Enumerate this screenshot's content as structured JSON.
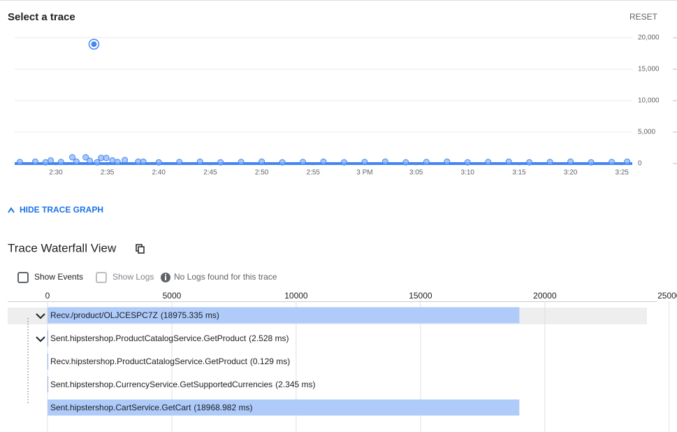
{
  "header": {
    "title": "Select a trace",
    "reset": "RESET"
  },
  "toggle": "HIDE TRACE GRAPH",
  "waterfall_title": "Trace Waterfall View",
  "controls": {
    "show_events": "Show Events",
    "show_logs": "Show Logs",
    "logs_note": "No Logs found for this trace"
  },
  "chart_data": [
    {
      "type": "scatter",
      "x": [
        873.7,
        871.6,
        872.9,
        874.4,
        874.9,
        876.7,
        869.5,
        873.3,
        875.5,
        878,
        866.5,
        868,
        869,
        870.5,
        872,
        874,
        876,
        878.5,
        880,
        882,
        884,
        886,
        888,
        890,
        892,
        894,
        896,
        898,
        900,
        902,
        904,
        906,
        908,
        910,
        912,
        914,
        916,
        918,
        920,
        922,
        924,
        925.5
      ],
      "values": [
        18975,
        1000,
        1000,
        900,
        900,
        550,
        500,
        450,
        500,
        300,
        250,
        300,
        200,
        250,
        300,
        200,
        250,
        300,
        200,
        250,
        300,
        200,
        250,
        300,
        200,
        250,
        300,
        200,
        250,
        300,
        200,
        250,
        300,
        200,
        250,
        300,
        200,
        250,
        300,
        200,
        250,
        300
      ],
      "selected": 0,
      "color": "#4285f4",
      "xlim": [
        866,
        926
      ],
      "ylim": [
        0,
        20000
      ],
      "xticks": [
        {
          "value": 870,
          "label": "2:30"
        },
        {
          "value": 875,
          "label": "2:35"
        },
        {
          "value": 880,
          "label": "2:40"
        },
        {
          "value": 885,
          "label": "2:45"
        },
        {
          "value": 890,
          "label": "2:50"
        },
        {
          "value": 895,
          "label": "2:55"
        },
        {
          "value": 900,
          "label": "3 PM"
        },
        {
          "value": 905,
          "label": "3:05"
        },
        {
          "value": 910,
          "label": "3:10"
        },
        {
          "value": 915,
          "label": "3:15"
        },
        {
          "value": 920,
          "label": "3:20"
        },
        {
          "value": 925,
          "label": "3:25"
        }
      ],
      "yticks": [
        0,
        {
          "value": 5000,
          "label": "5,000"
        },
        {
          "value": 10000,
          "label": "10,000"
        },
        {
          "value": 15000,
          "label": "15,000"
        },
        {
          "value": 20000,
          "label": "20,000"
        }
      ],
      "grid": true
    },
    {
      "type": "waterfall",
      "categories": [
        "Recv./product/OLJCESPC7Z",
        "Sent.hipstershop.ProductCatalogService.GetProduct",
        "Recv.hipstershop.ProductCatalogService.GetProduct",
        "Sent.hipstershop.CurrencyService.GetSupportedCurrencies",
        "Sent.hipstershop.CartService.GetCart"
      ],
      "starts": [
        0,
        0,
        1,
        3,
        6
      ],
      "values": [
        18975.335,
        2.528,
        0.129,
        2.345,
        18968.982
      ],
      "value_labels": [
        "(18975.335 ms)",
        "(2.528 ms)",
        "(0.129 ms)",
        "(2.345 ms)",
        "(18968.982 ms)"
      ],
      "color": "#aecbfa",
      "xlim": [
        0,
        24500
      ],
      "xticks": [
        0,
        5000,
        10000,
        15000,
        20000,
        25000
      ],
      "grid": true
    }
  ]
}
